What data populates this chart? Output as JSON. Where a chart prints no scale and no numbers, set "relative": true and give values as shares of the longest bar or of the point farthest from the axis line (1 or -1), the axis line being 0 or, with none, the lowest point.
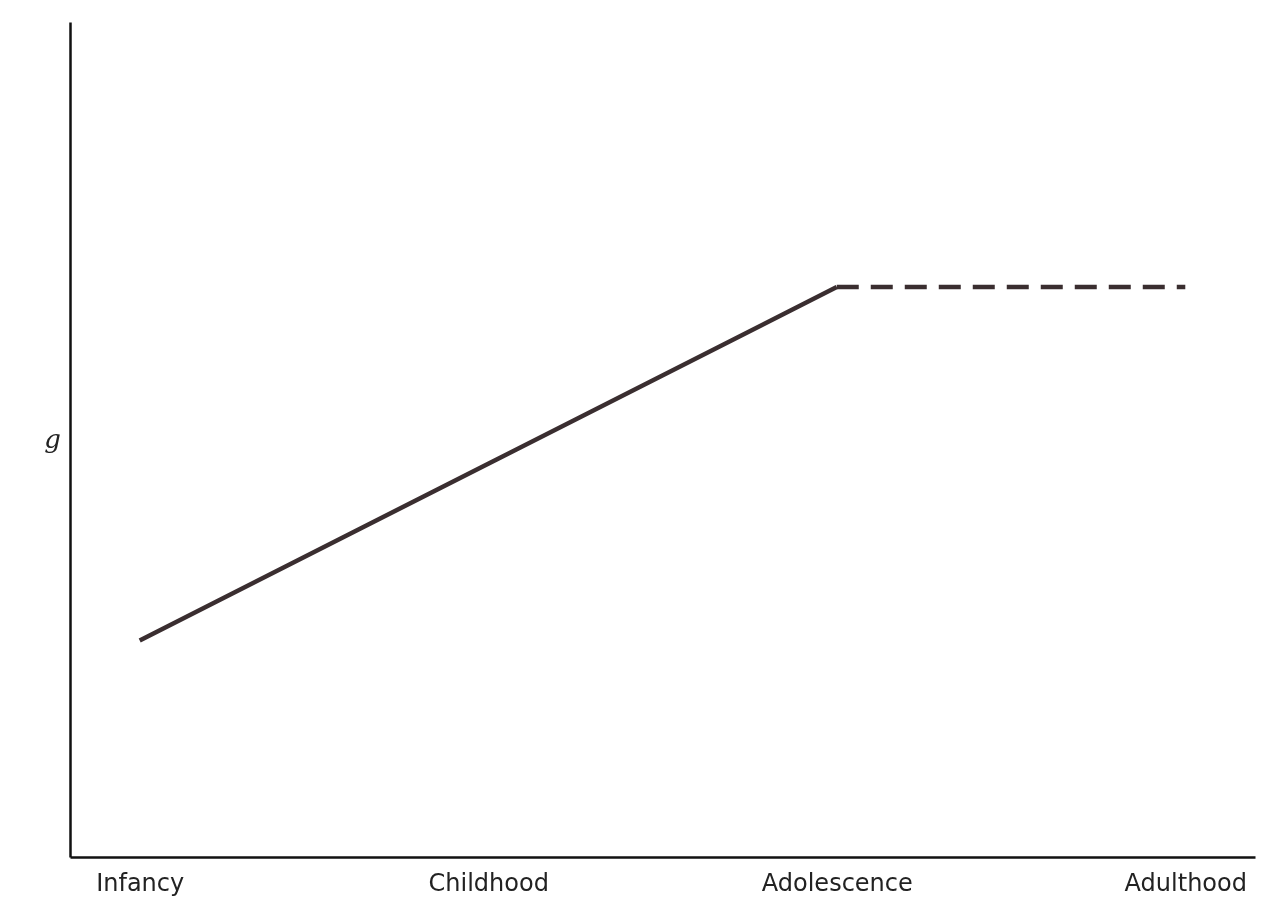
{
  "chart_data": {
    "type": "line",
    "relative": true,
    "ylabel": "g",
    "categories": [
      "Infancy",
      "Childhood",
      "Adolescence",
      "Adulthood"
    ],
    "grid": false,
    "marker": "none",
    "series": [
      {
        "color": "#3a2e30",
        "values": [
          0.38,
          0.69,
          1,
          null
        ],
        "line_style": "solid"
      },
      {
        "color": "#3a2e30",
        "values": [
          null,
          null,
          1,
          1
        ],
        "line_style": "dashed"
      }
    ]
  }
}
